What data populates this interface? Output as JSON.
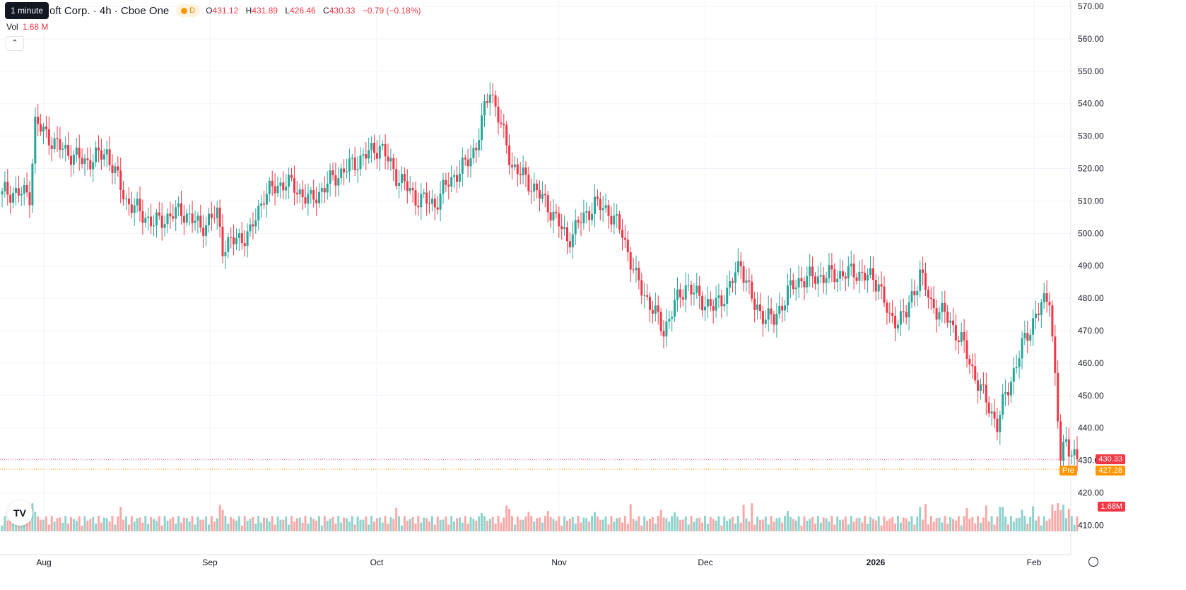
{
  "tooltip": "1 minute",
  "header": {
    "title": "oft Corp. · 4h · Cboe One",
    "session_badge": "D",
    "ohlc": {
      "o_label": "O",
      "o": "431.12",
      "h_label": "H",
      "h": "431.89",
      "l_label": "L",
      "l": "426.46",
      "c_label": "C",
      "c": "430.33",
      "change": "−0.79 (−0.18%)"
    },
    "vol_label": "Vol",
    "vol_value": "1.68 M"
  },
  "price_tags": {
    "last": "430.33",
    "pre_label": "Pre",
    "pre": "427.28",
    "volume": "1.68M"
  },
  "colors": {
    "up": "#26a69a",
    "down": "#f23645",
    "up_volume": "#8ed3cc",
    "down_volume": "#f7a9a7",
    "pre_market": "#ff9800",
    "grid": "#f0f3fa"
  },
  "icons": [
    "tradingview-logo-icon",
    "chevron-up-icon",
    "settings-icon",
    "sun-icon"
  ],
  "chart_data": {
    "type": "candlestick",
    "title": "oft Corp. · 4h · Cboe One",
    "y_ticks": [
      "570.00",
      "560.00",
      "550.00",
      "540.00",
      "530.00",
      "520.00",
      "510.00",
      "500.00",
      "490.00",
      "480.00",
      "470.00",
      "460.00",
      "450.00",
      "440.00",
      "430.00",
      "420.00",
      "410.00"
    ],
    "ylim": [
      410,
      570
    ],
    "x_ticks": [
      "Aug",
      "Sep",
      "Oct",
      "Nov",
      "Dec",
      "2026",
      "Feb"
    ],
    "grid": true,
    "last_price": 430.33,
    "pre_market_price": 427.28,
    "volume_last": "1.68M",
    "anchors": [
      [
        0,
        513
      ],
      [
        10,
        512
      ],
      [
        12,
        534
      ],
      [
        20,
        527
      ],
      [
        30,
        522
      ],
      [
        38,
        525
      ],
      [
        45,
        510
      ],
      [
        55,
        503
      ],
      [
        65,
        507
      ],
      [
        72,
        502
      ],
      [
        78,
        506
      ],
      [
        80,
        496
      ],
      [
        90,
        500
      ],
      [
        95,
        512
      ],
      [
        103,
        516
      ],
      [
        112,
        510
      ],
      [
        120,
        517
      ],
      [
        130,
        523
      ],
      [
        137,
        527
      ],
      [
        143,
        518
      ],
      [
        150,
        511
      ],
      [
        157,
        509
      ],
      [
        162,
        516
      ],
      [
        168,
        521
      ],
      [
        172,
        527
      ],
      [
        177,
        545
      ],
      [
        180,
        536
      ],
      [
        185,
        521
      ],
      [
        193,
        514
      ],
      [
        200,
        506
      ],
      [
        205,
        498
      ],
      [
        210,
        504
      ],
      [
        215,
        509
      ],
      [
        220,
        507
      ],
      [
        225,
        500
      ],
      [
        230,
        486
      ],
      [
        237,
        475
      ],
      [
        240,
        470
      ],
      [
        244,
        478
      ],
      [
        248,
        484
      ],
      [
        253,
        480
      ],
      [
        258,
        477
      ],
      [
        263,
        482
      ],
      [
        268,
        491
      ],
      [
        273,
        477
      ],
      [
        280,
        473
      ],
      [
        285,
        482
      ],
      [
        290,
        486
      ],
      [
        300,
        487
      ],
      [
        310,
        488
      ],
      [
        318,
        485
      ],
      [
        322,
        473
      ],
      [
        328,
        475
      ],
      [
        333,
        488
      ],
      [
        337,
        478
      ],
      [
        342,
        475
      ],
      [
        348,
        467
      ],
      [
        352,
        458
      ],
      [
        356,
        450
      ],
      [
        361,
        441
      ],
      [
        364,
        450
      ],
      [
        370,
        465
      ],
      [
        375,
        475
      ],
      [
        380,
        481
      ],
      [
        384,
        430
      ],
      [
        386,
        436
      ],
      [
        390,
        430
      ]
    ]
  }
}
